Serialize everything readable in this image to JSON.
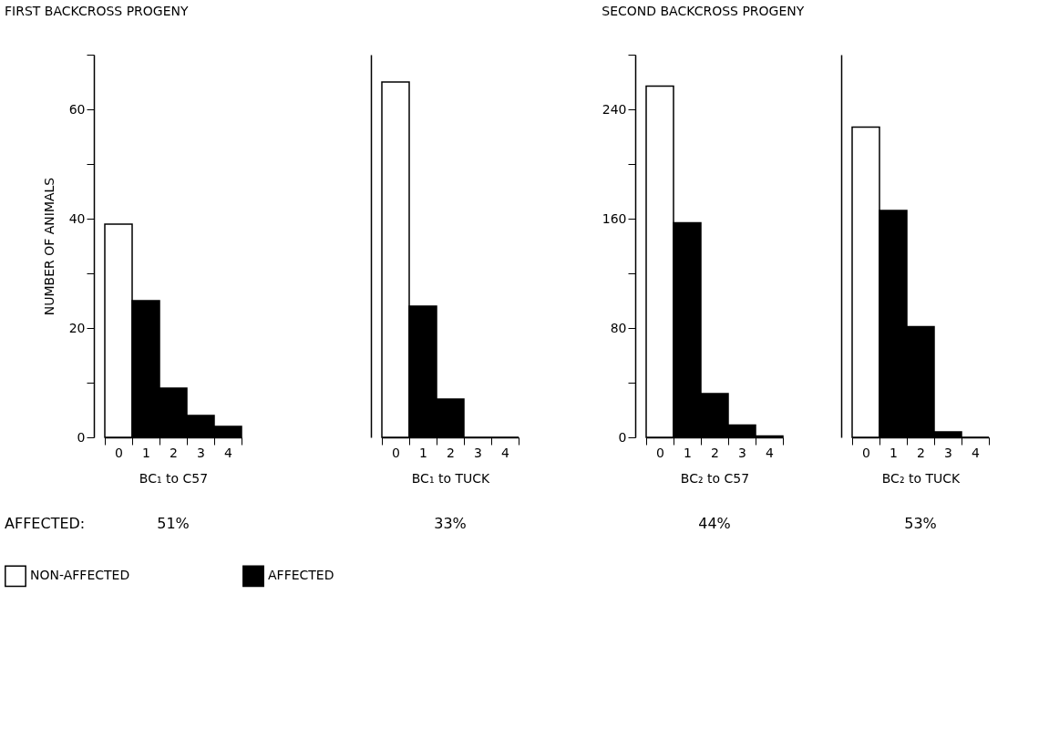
{
  "chart_data": [
    {
      "type": "bar",
      "title": "FIRST BACKCROSS PROGENY",
      "ylabel": "NUMBER OF ANIMALS",
      "xlabel": "BC₁ to C57",
      "categories": [
        "0",
        "1",
        "2",
        "3",
        "4"
      ],
      "series": [
        {
          "name": "NON-AFFECTED",
          "color": "#ffffff",
          "values": [
            39,
            null,
            null,
            null,
            null
          ]
        },
        {
          "name": "AFFECTED",
          "color": "#000000",
          "values": [
            null,
            25,
            9,
            4,
            2
          ]
        }
      ],
      "ylim": [
        0,
        70
      ],
      "yticks": [
        0,
        {
          "value": 10,
          "label": null
        },
        20,
        {
          "value": 30,
          "label": null
        },
        40,
        {
          "value": 50,
          "label": null
        },
        60,
        {
          "value": 70,
          "label": null
        }
      ],
      "annotations": [
        "AFFECTED:",
        "51%"
      ],
      "legend": "bottom",
      "grid": false
    },
    {
      "type": "bar",
      "xlabel": "BC₁ to TUCK",
      "categories": [
        "0",
        "1",
        "2",
        "3",
        "4"
      ],
      "series": [
        {
          "color": "#ffffff",
          "values": [
            65,
            null,
            null,
            null,
            null
          ]
        },
        {
          "color": "#000000",
          "values": [
            null,
            24,
            7,
            0,
            0
          ]
        }
      ],
      "ylim": [
        0,
        70
      ],
      "tick_labels": "x",
      "annotations": [
        "33%"
      ],
      "grid": false
    },
    {
      "type": "bar",
      "title": "SECOND BACKCROSS PROGENY",
      "xlabel": "BC₂ to C57",
      "categories": [
        "0",
        "1",
        "2",
        "3",
        "4"
      ],
      "series": [
        {
          "color": "#ffffff",
          "values": [
            257,
            null,
            null,
            null,
            null
          ]
        },
        {
          "color": "#000000",
          "values": [
            null,
            157,
            32,
            9,
            1
          ]
        }
      ],
      "ylim": [
        0,
        280
      ],
      "yticks": [
        0,
        {
          "value": 40,
          "label": null
        },
        80,
        {
          "value": 120,
          "label": null
        },
        160,
        {
          "value": 200,
          "label": null
        },
        240,
        {
          "value": 280,
          "label": null
        }
      ],
      "annotations": [
        "44%"
      ],
      "grid": false
    },
    {
      "type": "bar",
      "xlabel": "BC₂ to TUCK",
      "categories": [
        "0",
        "1",
        "2",
        "3",
        "4"
      ],
      "series": [
        {
          "color": "#ffffff",
          "values": [
            227,
            null,
            null,
            null,
            null
          ]
        },
        {
          "color": "#000000",
          "values": [
            null,
            166,
            81,
            4,
            0
          ]
        }
      ],
      "ylim": [
        0,
        280
      ],
      "tick_labels": "x",
      "annotations": [
        "53%"
      ],
      "grid": false
    }
  ]
}
